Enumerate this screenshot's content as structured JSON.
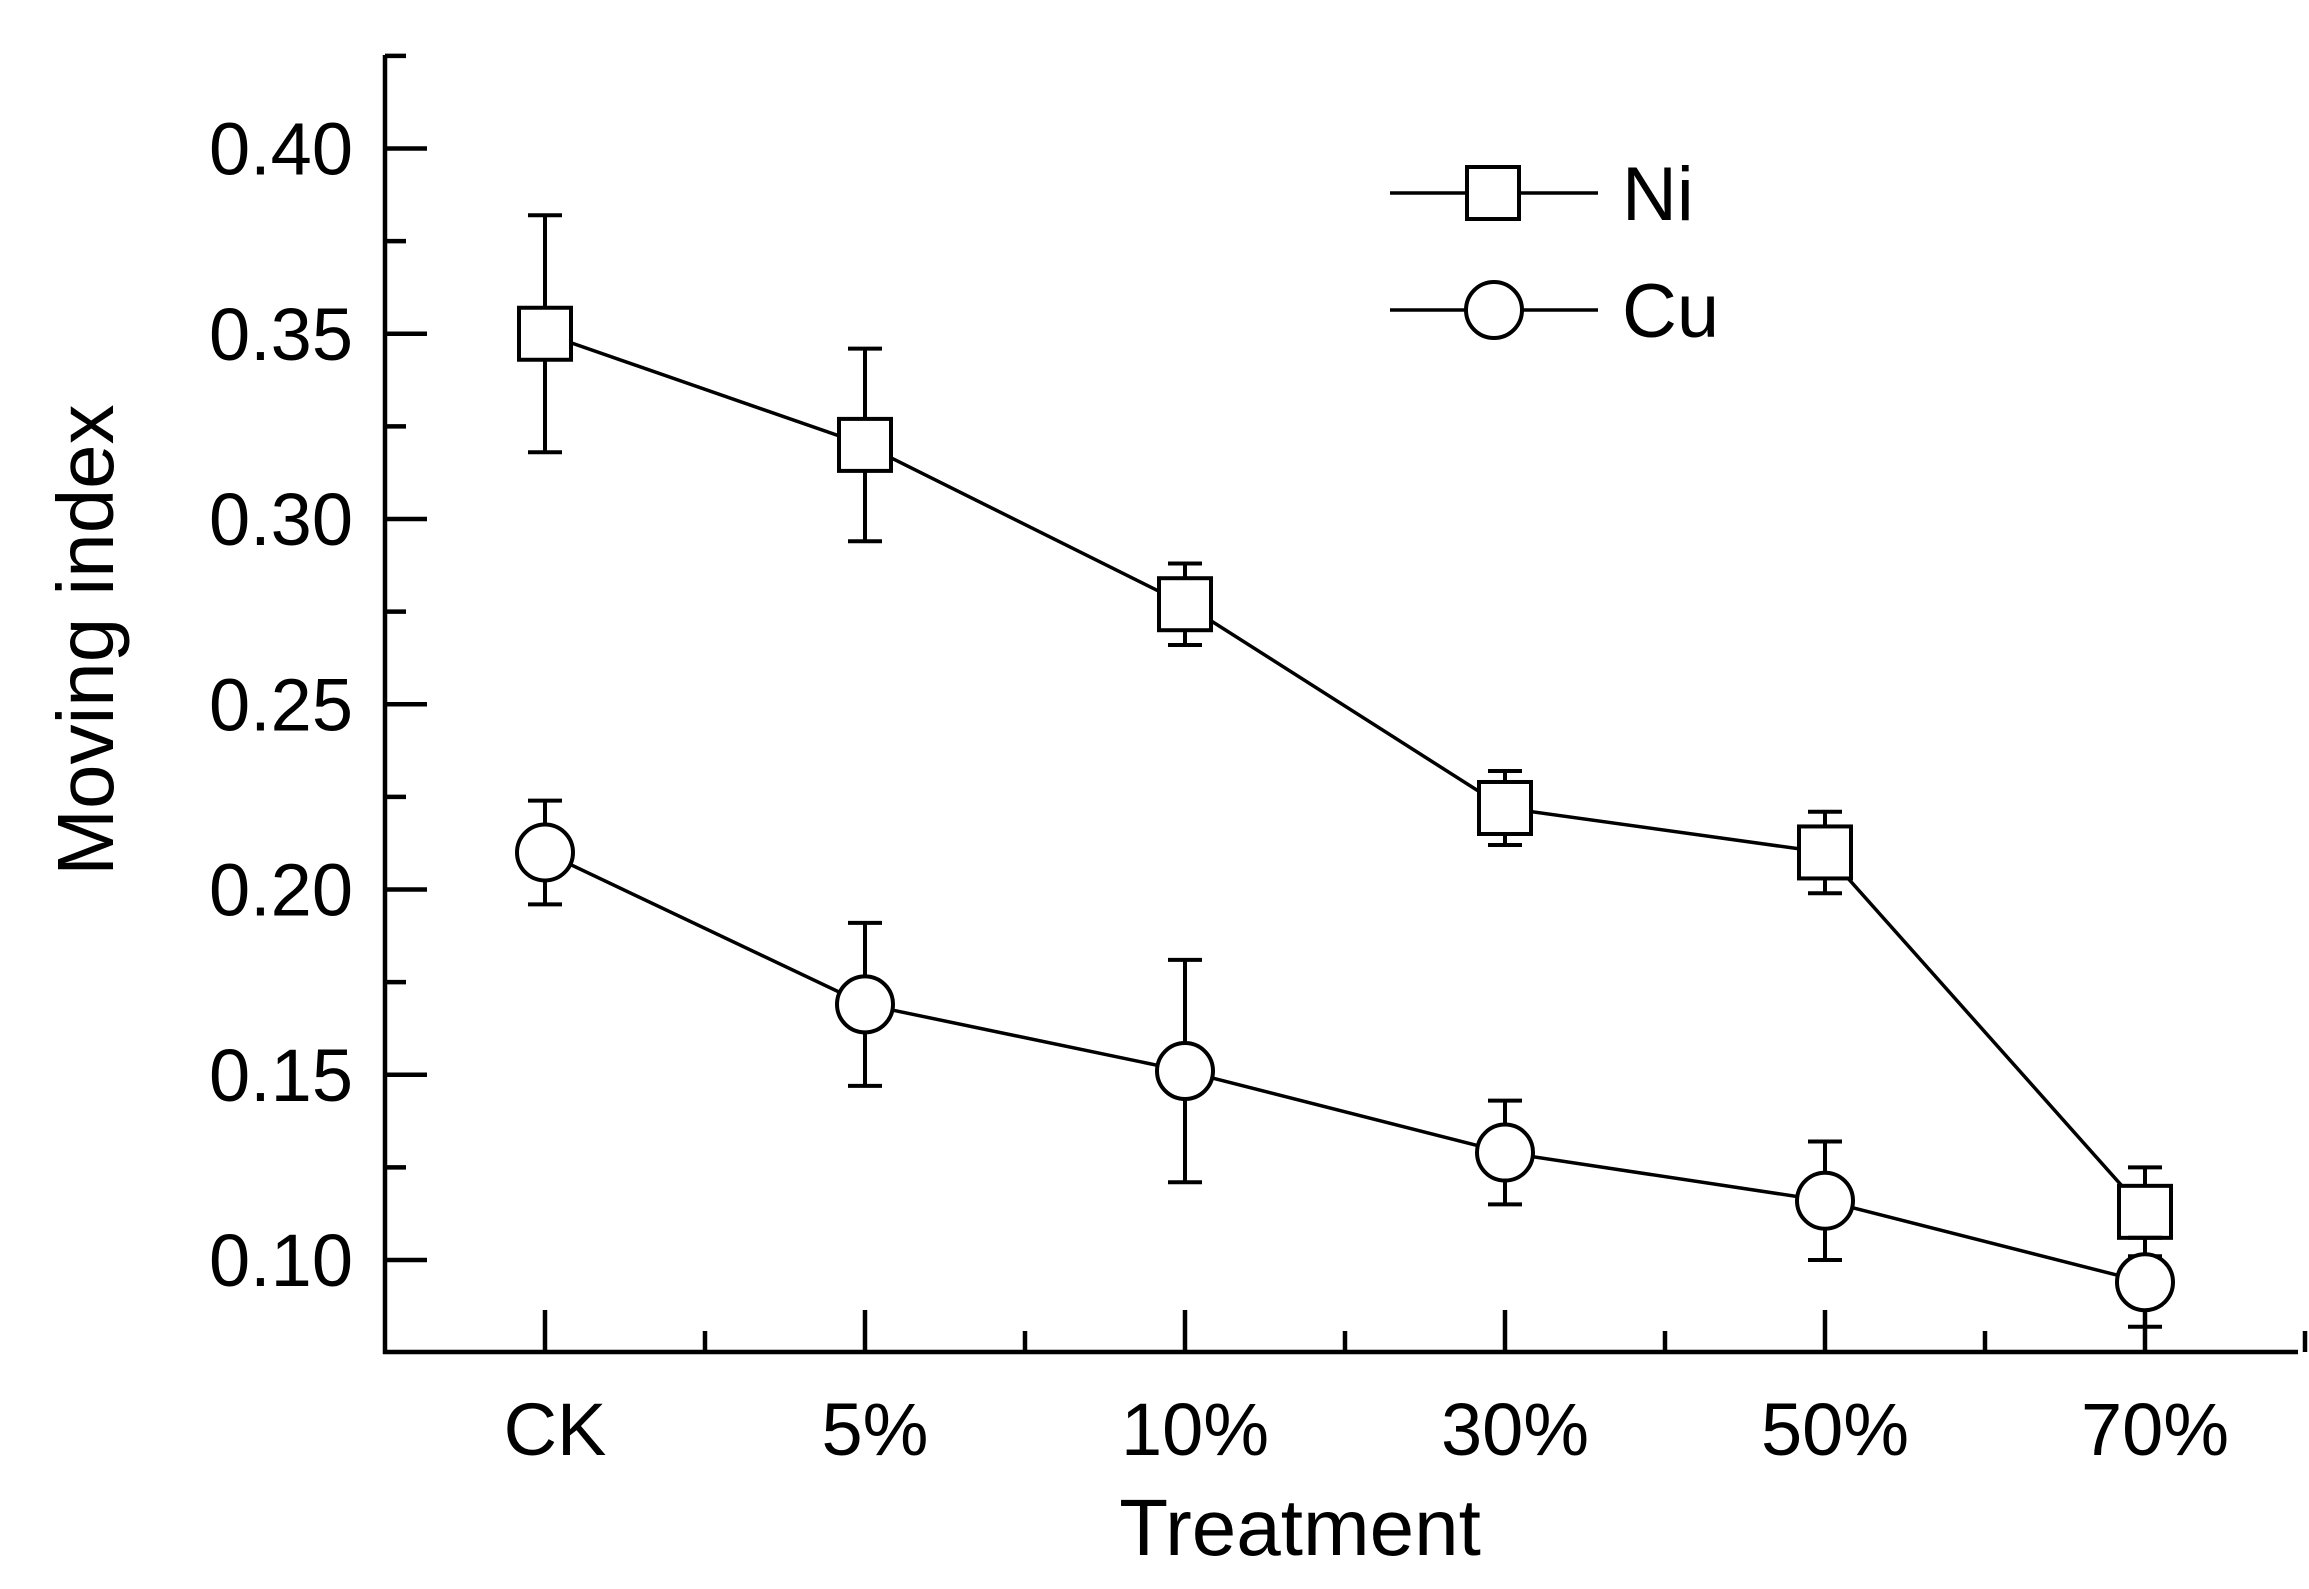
{
  "chart_data": {
    "type": "line",
    "title": "",
    "xlabel": "Treatment",
    "ylabel": "Moving index",
    "categories": [
      "CK",
      "5%",
      "10%",
      "30%",
      "50%",
      "70%"
    ],
    "ylim": [
      0.075,
      0.425
    ],
    "yticks": [
      "0.10",
      "0.15",
      "0.20",
      "0.25",
      "0.30",
      "0.35",
      "0.40"
    ],
    "legend_position": "top-center",
    "series": [
      {
        "name": "Ni",
        "marker": "square",
        "values": [
          0.35,
          0.32,
          0.277,
          0.222,
          0.21,
          0.113
        ],
        "error": [
          0.032,
          0.026,
          0.011,
          0.01,
          0.011,
          0.012
        ]
      },
      {
        "name": "Cu",
        "marker": "circle",
        "values": [
          0.21,
          0.169,
          0.151,
          0.129,
          0.116,
          0.094
        ],
        "error": [
          0.014,
          0.022,
          0.03,
          0.014,
          0.016,
          0.012
        ]
      }
    ]
  }
}
